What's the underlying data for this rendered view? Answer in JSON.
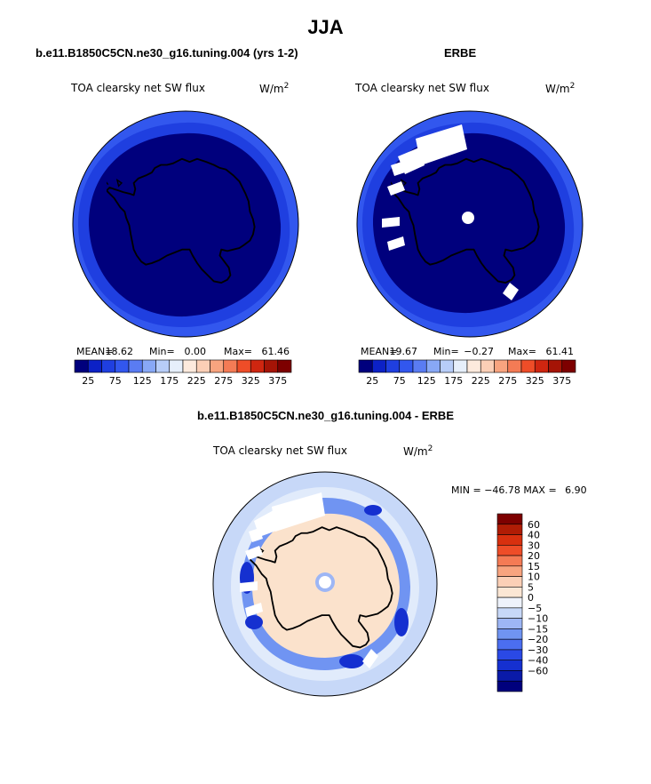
{
  "page_title": "JJA",
  "colors": {
    "land_water_navy": "#00007d",
    "ring_blue": "#1f3fe0",
    "outer_blue": "#3257ee",
    "diff_peach": "#fbe2cc",
    "diff_light_blue": "#b9cff8",
    "missing": "#ffffff"
  },
  "chart_data": [
    {
      "type": "heatmap",
      "projection": "south-polar-stereographic",
      "title": "b.e11.B1850C5CN.ne30_g16.tuning.004 (yrs 1-2)",
      "variable": "TOA clearsky net SW flux",
      "units": "W/m",
      "units_exp": "2",
      "stats": {
        "mean_label": "MEAN=",
        "mean": "18.62",
        "min_label": "Min=",
        "min": "0.00",
        "max_label": "Max=",
        "max": "61.46"
      },
      "colorbar": {
        "colors": [
          "#00007d",
          "#0c21c6",
          "#1f3fe0",
          "#3257ee",
          "#5a7cf2",
          "#88a8f6",
          "#b7cdf8",
          "#e6effb",
          "#fdeadd",
          "#fbcfb6",
          "#f8a47f",
          "#f47b55",
          "#ee4d28",
          "#cf2610",
          "#a51406",
          "#7d0000"
        ],
        "labels": [
          "25",
          "75",
          "125",
          "175",
          "225",
          "275",
          "325",
          "375"
        ]
      }
    },
    {
      "type": "heatmap",
      "projection": "south-polar-stereographic",
      "title": "ERBE",
      "variable": "TOA clearsky net SW flux",
      "units": "W/m",
      "units_exp": "2",
      "stats": {
        "mean_label": "MEAN=",
        "mean": "19.67",
        "min_label": "Min=",
        "min": "−0.27",
        "max_label": "Max=",
        "max": "61.41"
      },
      "colorbar": {
        "colors": [
          "#00007d",
          "#0c21c6",
          "#1f3fe0",
          "#3257ee",
          "#5a7cf2",
          "#88a8f6",
          "#b7cdf8",
          "#e6effb",
          "#fdeadd",
          "#fbcfb6",
          "#f8a47f",
          "#f47b55",
          "#ee4d28",
          "#cf2610",
          "#a51406",
          "#7d0000"
        ],
        "labels": [
          "25",
          "75",
          "125",
          "175",
          "225",
          "275",
          "325",
          "375"
        ]
      }
    },
    {
      "type": "heatmap",
      "projection": "south-polar-stereographic",
      "title": "b.e11.B1850C5CN.ne30_g16.tuning.004 - ERBE",
      "variable": "TOA clearsky net SW flux",
      "units": "W/m",
      "units_exp": "2",
      "stats": {
        "min_label": "MIN =",
        "min": "−46.78",
        "max_label": "MAX =",
        "max": "6.90"
      },
      "colorbar": {
        "colors": [
          "#7d0000",
          "#b01c05",
          "#d8300f",
          "#ee4d28",
          "#f47b55",
          "#f8a47f",
          "#fbcfb6",
          "#fbe6d4",
          "#eef2fb",
          "#c7d8f8",
          "#9db6f5",
          "#7094f2",
          "#4b6ef0",
          "#2a49e6",
          "#1530d0",
          "#0a1aa8",
          "#00007d"
        ],
        "labels": [
          "60",
          "40",
          "30",
          "20",
          "15",
          "10",
          "5",
          "0",
          "−5",
          "−10",
          "−15",
          "−20",
          "−30",
          "−40",
          "−60"
        ]
      }
    }
  ]
}
